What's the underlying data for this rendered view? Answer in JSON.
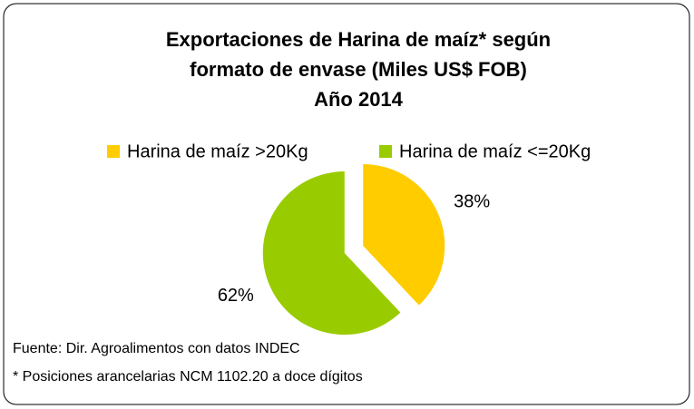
{
  "chart_data": {
    "type": "pie",
    "title": [
      "Exportaciones de Harina de maíz* según",
      "formato de envase (Miles US$ FOB)",
      "Año 2014"
    ],
    "categories": [
      "Harina de maíz >20Kg",
      "Harina de maíz <=20Kg"
    ],
    "values": [
      38,
      62
    ],
    "value_labels": [
      "38%",
      "62%"
    ],
    "colors": [
      "#ffcc00",
      "#99cc00"
    ],
    "legend": "top",
    "notes": [
      "Fuente: Dir. Agroalimentos con datos INDEC",
      "* Posiciones arancelarias NCM 1102.20 a doce dígitos"
    ]
  }
}
